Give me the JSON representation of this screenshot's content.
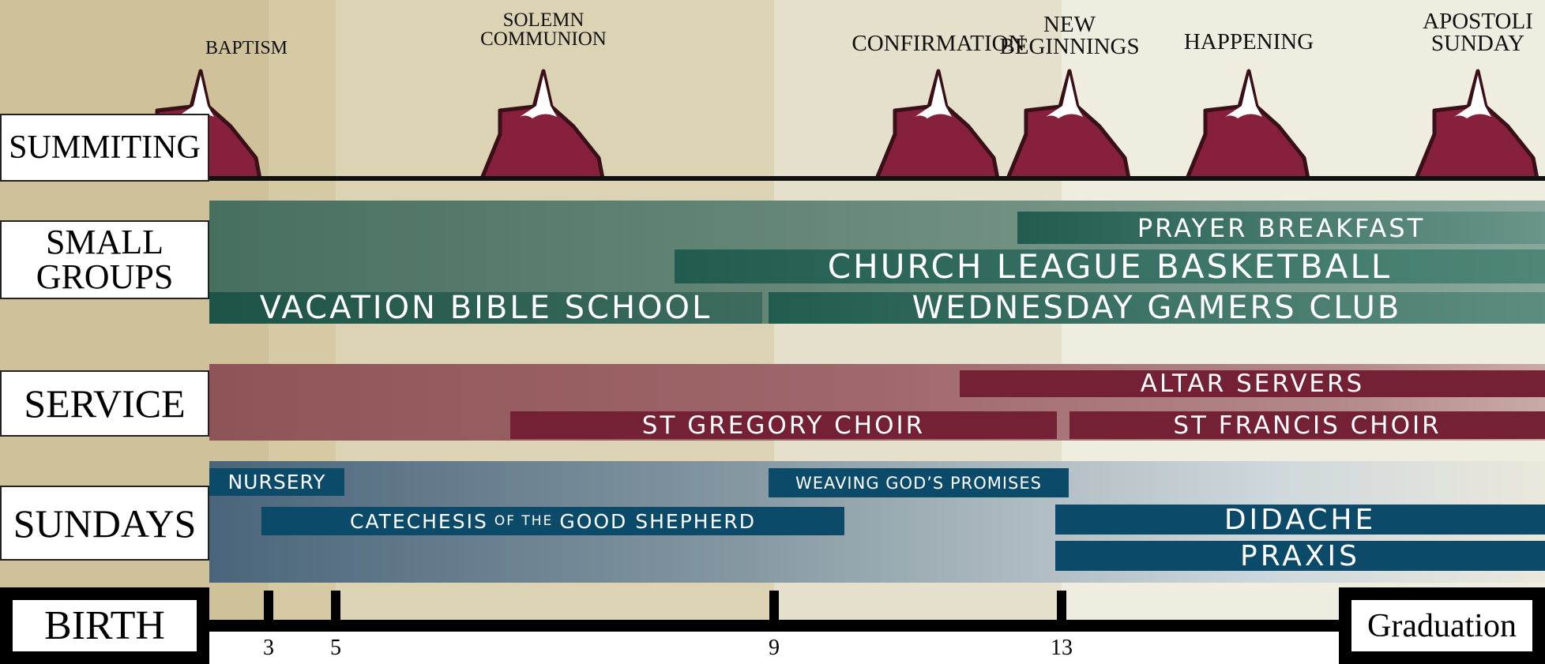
{
  "rows": {
    "summiting": "SUMMITING",
    "small_groups": [
      "SMALL",
      "GROUPS"
    ],
    "service": "SERVICE",
    "sundays": "SUNDAYS"
  },
  "milestones": [
    "BAPTISM",
    "SOLEMN COMMUNION",
    "CONFIRMATION",
    "NEW BEGINNINGS",
    "HAPPENING",
    "APOSTOLI SUNDAY"
  ],
  "milestone_lines": [
    [
      "BAPTISM"
    ],
    [
      "SOLEMN",
      "COMMUNION"
    ],
    [
      "CONFIRMATION"
    ],
    [
      "NEW",
      "BEGINNINGS"
    ],
    [
      "HAPPENING"
    ],
    [
      "APOSTOLI",
      "SUNDAY"
    ]
  ],
  "small_groups": {
    "prayer_breakfast": "PRAYER BREAKFAST",
    "church_league": "CHURCH LEAGUE BASKETBALL",
    "vbs": "VACATION BIBLE SCHOOL",
    "gamers": "WEDNESDAY GAMERS CLUB"
  },
  "service": {
    "altar": "ALTAR SERVERS",
    "st_gregory": "ST GREGORY CHOIR",
    "st_francis": "ST FRANCIS CHOIR"
  },
  "sundays": {
    "nursery": "NURSERY",
    "weaving": "WEAVING GOD’S PROMISES",
    "catechesis_a": "CATECHESIS",
    "catechesis_b": "OF THE",
    "catechesis_c": "GOOD SHEPHERD",
    "didache": "DIDACHE",
    "praxis": "PRAXIS"
  },
  "timeline": {
    "start": "BIRTH",
    "end": "Graduation",
    "ticks": [
      "3",
      "5",
      "9",
      "13"
    ]
  },
  "colors": {
    "mountain": "#86203c",
    "green": "#215c4f",
    "maroon": "#742035",
    "blue": "#0b4a69"
  }
}
